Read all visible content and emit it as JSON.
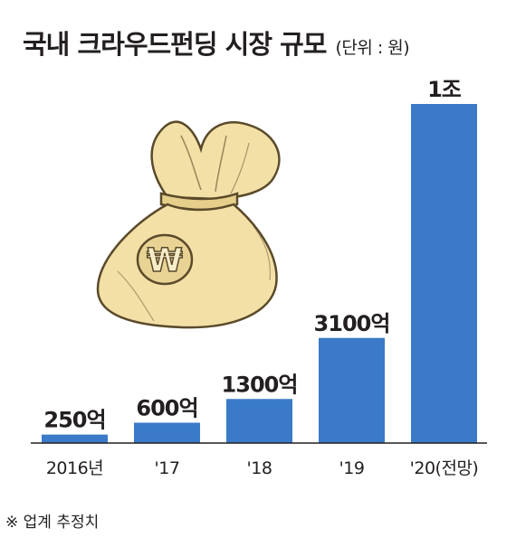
{
  "title": "국내 크라우드펀딩 시장 규모",
  "unit_note": "(단위 : 원)",
  "footnote": "※ 업계 추정치",
  "colors": {
    "bar": "#3a7ac8",
    "axis": "#231f20",
    "bag_fill": "#f2e0a6",
    "bag_outline": "#5a4a2a"
  },
  "illustration": {
    "icon": "money-bag-icon",
    "symbol": "₩"
  },
  "chart_data": {
    "type": "bar",
    "title": "국내 크라우드펀딩 시장 규모",
    "xlabel": "",
    "ylabel": "",
    "unit": "원",
    "categories": [
      "2016년",
      "'17",
      "'18",
      "'19",
      "'20(전망)"
    ],
    "values": [
      25000000000,
      60000000000,
      130000000000,
      310000000000,
      1000000000000
    ],
    "value_labels": [
      "250억",
      "600억",
      "1300억",
      "3100억",
      "1조"
    ],
    "ylim": [
      0,
      1000000000000
    ],
    "grid": false,
    "legend": "none"
  }
}
